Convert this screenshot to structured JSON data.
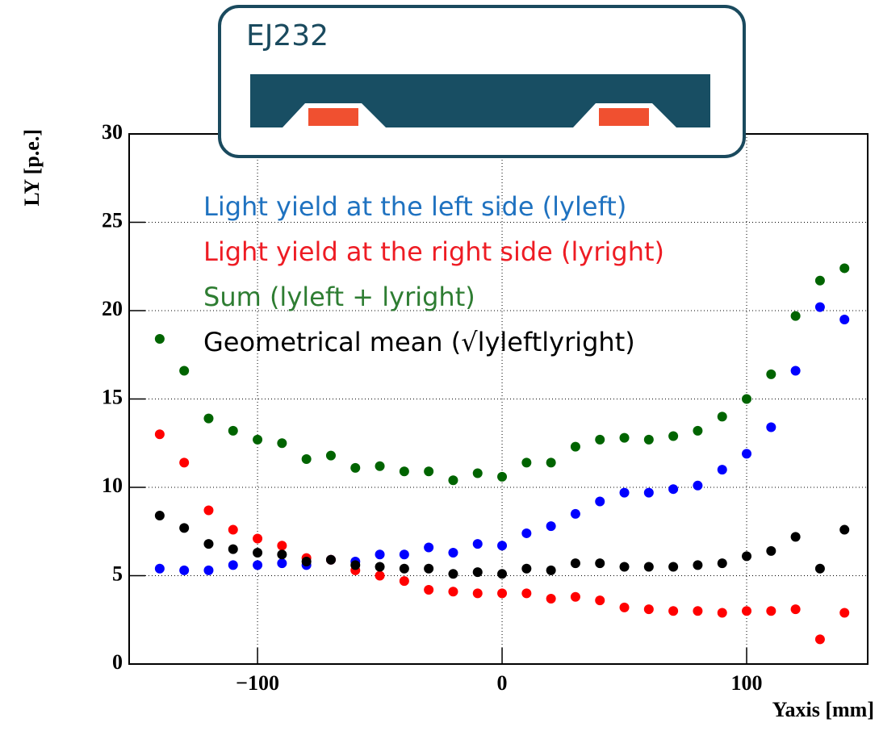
{
  "chart_data": {
    "type": "scatter",
    "annotation": "EJ232",
    "x_label": "Yaxis [mm]",
    "y_label": "LY [p.e.]",
    "xlim": [
      -152.5,
      149.5
    ],
    "ylim": [
      0,
      30
    ],
    "xticks": [
      {
        "value": -100,
        "label": "−100"
      },
      0,
      100
    ],
    "yticks": [
      0,
      5,
      10,
      15,
      20,
      25,
      30
    ],
    "grid": true,
    "x": [
      -140,
      -130,
      -120,
      -110,
      -100,
      -90,
      -80,
      -70,
      -60,
      -50,
      -40,
      -30,
      -20,
      -10,
      0,
      10,
      20,
      30,
      40,
      50,
      60,
      70,
      80,
      90,
      100,
      110,
      120,
      130,
      140
    ],
    "series": [
      {
        "name": "Light yield at the left side (lyleft)",
        "color": "#0000ff",
        "label_color": "#1f72c0",
        "values": [
          5.4,
          5.3,
          5.3,
          5.6,
          5.6,
          5.7,
          5.6,
          5.9,
          5.8,
          6.2,
          6.2,
          6.6,
          6.3,
          6.8,
          6.7,
          7.4,
          7.8,
          8.5,
          9.2,
          9.7,
          9.7,
          9.9,
          10.1,
          11.0,
          11.9,
          13.4,
          16.6,
          20.2,
          19.5
        ]
      },
      {
        "name": "Light yield at the right side (lyright)",
        "color": "#ff0000",
        "label_color": "#ee1c24",
        "values": [
          13.0,
          11.4,
          8.7,
          7.6,
          7.1,
          6.7,
          6.0,
          5.9,
          5.3,
          5.0,
          4.7,
          4.2,
          4.1,
          4.0,
          4.0,
          4.0,
          3.7,
          3.8,
          3.6,
          3.2,
          3.1,
          3.0,
          3.0,
          2.9,
          3.0,
          3.0,
          3.1,
          1.4,
          2.9
        ]
      },
      {
        "name": "Sum (lyleft + lyright)",
        "color": "#006400",
        "label_color": "#2e7d32",
        "values": [
          18.4,
          16.6,
          13.9,
          13.2,
          12.7,
          12.5,
          11.6,
          11.8,
          11.1,
          11.2,
          10.9,
          10.9,
          10.4,
          10.8,
          10.6,
          11.4,
          11.4,
          12.3,
          12.7,
          12.8,
          12.7,
          12.9,
          13.2,
          14.0,
          15.0,
          16.4,
          19.7,
          21.7,
          22.4
        ]
      },
      {
        "name": "Geometrical mean (√lyleftlyright)",
        "color": "#000000",
        "label_color": "#000000",
        "values": [
          8.4,
          7.7,
          6.8,
          6.5,
          6.3,
          6.2,
          5.8,
          5.9,
          5.6,
          5.5,
          5.4,
          5.4,
          5.1,
          5.2,
          5.1,
          5.4,
          5.3,
          5.7,
          5.7,
          5.5,
          5.5,
          5.5,
          5.6,
          5.7,
          6.1,
          6.4,
          7.2,
          5.4,
          7.6
        ]
      }
    ]
  }
}
